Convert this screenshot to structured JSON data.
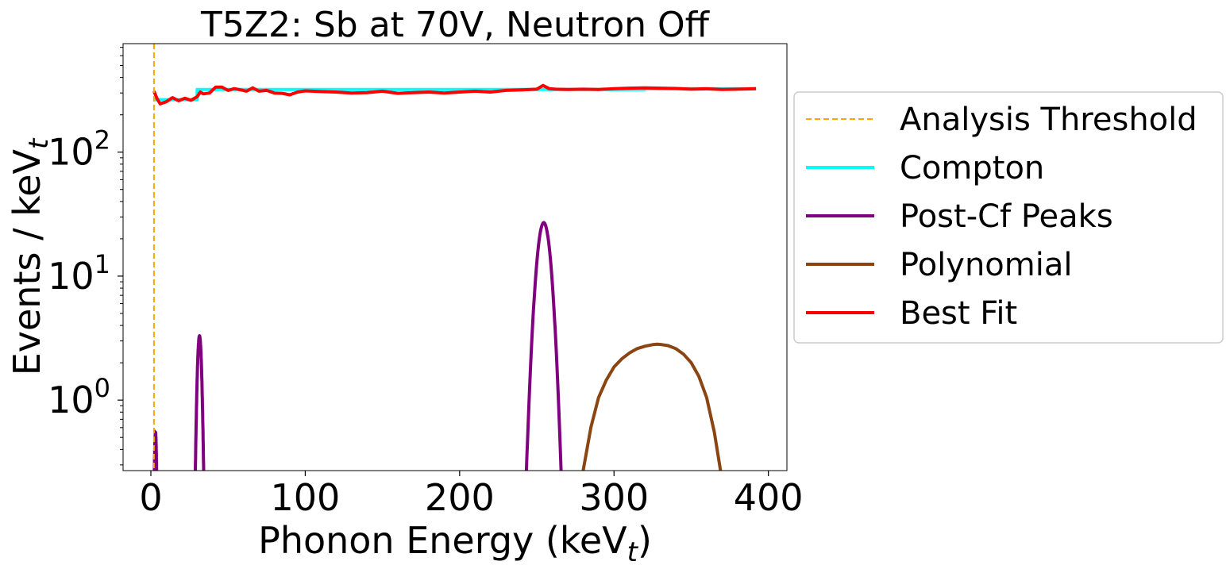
{
  "chart_data": {
    "type": "line",
    "title": "T5Z2: Sb at 70V, Neutron Off",
    "xlabel": "Phonon Energy (keV",
    "xlabel_sub": "t",
    "xlabel_close": ")",
    "ylabel": "Events / keV",
    "ylabel_sub": "t",
    "x_scale": "linear",
    "y_scale": "log",
    "xlim": [
      -18,
      412
    ],
    "ylim": [
      0.27,
      750
    ],
    "x_ticks": [
      0,
      100,
      200,
      300,
      400
    ],
    "x_tick_labels": [
      "0",
      "100",
      "200",
      "300",
      "400"
    ],
    "y_ticks": [
      1,
      10,
      100
    ],
    "y_tick_labels": [
      {
        "base": "10",
        "exp": "0"
      },
      {
        "base": "10",
        "exp": "1"
      },
      {
        "base": "10",
        "exp": "2"
      }
    ],
    "grid": false,
    "legend_position": "outside-right",
    "threshold": {
      "name": "Analysis Threshold",
      "x": 2,
      "color": "#FFA500",
      "style": "dashed"
    },
    "series": [
      {
        "name": "Compton",
        "color": "#00FFFF",
        "x": [
          2,
          30,
          30,
          320,
          320,
          392
        ],
        "y": [
          265,
          265,
          320,
          320,
          325,
          325
        ]
      },
      {
        "name": "Post-Cf Peaks",
        "color": "#800080",
        "peaks": [
          {
            "center": 3.0,
            "sigma": 0.6,
            "amplitude": 0.55
          },
          {
            "center": 31.5,
            "sigma": 1.2,
            "amplitude": 3.3
          },
          {
            "center": 254.5,
            "sigma": 3.7,
            "amplitude": 27
          }
        ]
      },
      {
        "name": "Polynomial",
        "color": "#8B4513",
        "x": [
          280,
          285,
          290,
          295,
          300,
          305,
          310,
          315,
          320,
          325,
          328,
          331,
          335,
          340,
          345,
          350,
          355,
          360,
          365,
          369
        ],
        "y": [
          0.27,
          0.6,
          1.05,
          1.45,
          1.85,
          2.15,
          2.4,
          2.6,
          2.72,
          2.8,
          2.82,
          2.8,
          2.75,
          2.6,
          2.35,
          2.0,
          1.55,
          1.05,
          0.55,
          0.27
        ]
      },
      {
        "name": "Best Fit",
        "color": "#FF0000",
        "x": [
          2,
          4,
          6,
          10,
          14,
          18,
          22,
          26,
          30,
          32,
          34,
          38,
          42,
          46,
          50,
          54,
          58,
          62,
          66,
          70,
          75,
          80,
          85,
          90,
          95,
          100,
          110,
          120,
          130,
          140,
          150,
          160,
          170,
          180,
          190,
          200,
          210,
          220,
          230,
          240,
          250,
          254,
          258,
          262,
          270,
          280,
          290,
          300,
          310,
          320,
          330,
          340,
          350,
          360,
          370,
          380,
          392
        ],
        "y": [
          310,
          270,
          245,
          255,
          275,
          260,
          272,
          262,
          280,
          305,
          295,
          300,
          335,
          335,
          315,
          325,
          318,
          310,
          330,
          310,
          315,
          300,
          298,
          290,
          305,
          312,
          308,
          305,
          300,
          302,
          310,
          298,
          302,
          305,
          300,
          305,
          310,
          305,
          315,
          318,
          322,
          345,
          325,
          322,
          320,
          322,
          320,
          325,
          328,
          330,
          328,
          326,
          322,
          324,
          320,
          322,
          325
        ]
      }
    ]
  }
}
